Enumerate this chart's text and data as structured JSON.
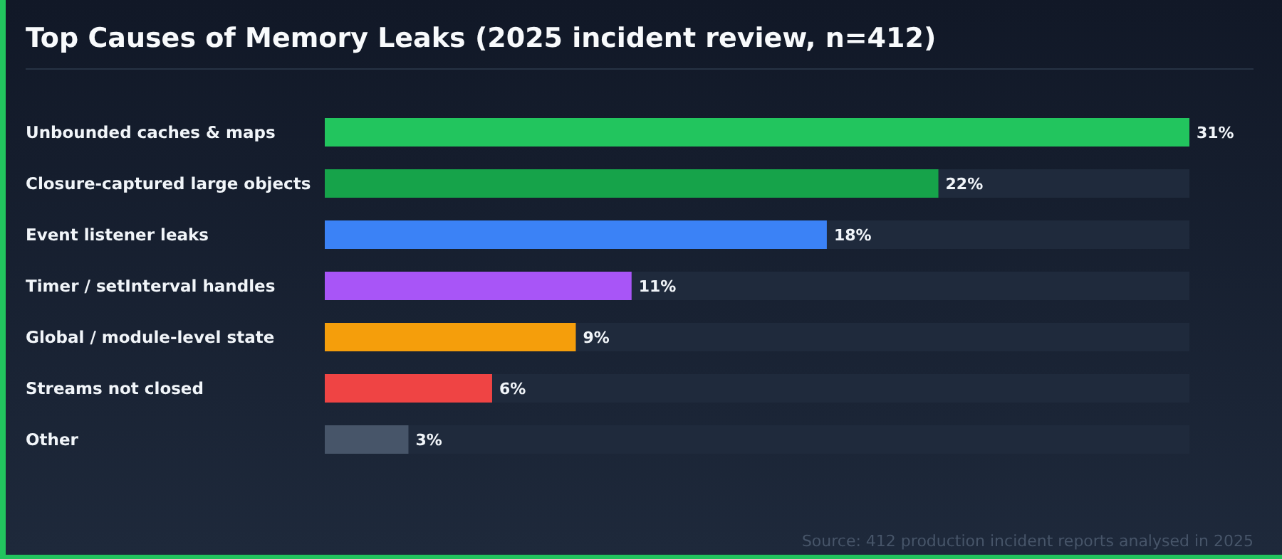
{
  "chart_data": {
    "type": "bar",
    "orientation": "horizontal",
    "title": "Top Causes of Memory Leaks (2025 incident review, n=412)",
    "categories": [
      "Unbounded caches & maps",
      "Closure-captured large objects",
      "Event listener leaks",
      "Timer / setInterval handles",
      "Global / module-level state",
      "Streams not closed",
      "Other"
    ],
    "values": [
      31,
      22,
      18,
      11,
      9,
      6,
      3
    ],
    "colors": [
      "#22c55e",
      "#16a34a",
      "#3b82f6",
      "#a855f7",
      "#f59e0b",
      "#ef4444",
      "#475569"
    ],
    "value_labels": [
      "31%",
      "22%",
      "18%",
      "11%",
      "9%",
      "6%",
      "3%"
    ],
    "annotations": [
      "Source: 412 production incident reports analysed in 2025"
    ]
  }
}
